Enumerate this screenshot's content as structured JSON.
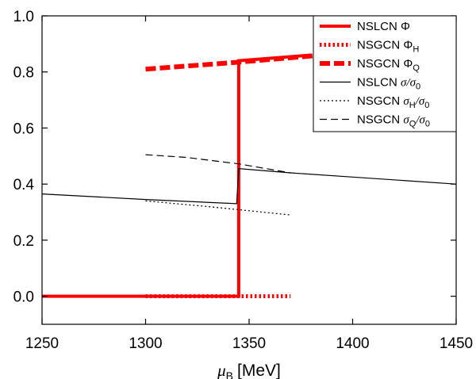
{
  "chart_data": {
    "type": "line",
    "xlabel_symbol": "μ",
    "xlabel_sub": "B",
    "xlabel_unit": "[MeV]",
    "xlim": [
      1250,
      1450
    ],
    "ylim": [
      -0.1,
      1.0
    ],
    "xticks": [
      1250,
      1300,
      1350,
      1400,
      1450
    ],
    "yticks": [
      0.0,
      0.2,
      0.4,
      0.6,
      0.8,
      1.0
    ],
    "ytick_labels": [
      "0.0",
      "0.2",
      "0.4",
      "0.6",
      "0.8",
      "1.0"
    ],
    "grid": false,
    "legend_position": "top-right",
    "series": [
      {
        "name": "NSLCN Φ",
        "color": "#ff0000",
        "style": "solid-thick",
        "points": [
          [
            1250,
            0.0
          ],
          [
            1345,
            0.0
          ],
          [
            1345,
            0.84
          ],
          [
            1380,
            0.86
          ]
        ]
      },
      {
        "name": "NSGCN ΦH",
        "color": "#ff0000",
        "style": "dotted-thick",
        "points": [
          [
            1300,
            0.0
          ],
          [
            1370,
            0.0
          ]
        ]
      },
      {
        "name": "NSGCN ΦQ",
        "color": "#ff0000",
        "style": "dashed-thick",
        "points": [
          [
            1300,
            0.81
          ],
          [
            1345,
            0.835
          ],
          [
            1385,
            0.86
          ]
        ]
      },
      {
        "name": "NSLCN σ/σ0",
        "color": "#000000",
        "style": "solid",
        "points": [
          [
            1250,
            0.365
          ],
          [
            1300,
            0.345
          ],
          [
            1344,
            0.33
          ],
          [
            1345,
            0.455
          ],
          [
            1370,
            0.44
          ],
          [
            1400,
            0.425
          ],
          [
            1450,
            0.4
          ]
        ]
      },
      {
        "name": "NSGCN σH/σ0",
        "color": "#000000",
        "style": "dotted",
        "points": [
          [
            1300,
            0.34
          ],
          [
            1330,
            0.32
          ],
          [
            1370,
            0.29
          ]
        ]
      },
      {
        "name": "NSGCN σQ/σ0",
        "color": "#000000",
        "style": "dashed",
        "points": [
          [
            1300,
            0.505
          ],
          [
            1320,
            0.495
          ],
          [
            1345,
            0.472
          ],
          [
            1370,
            0.44
          ]
        ]
      }
    ],
    "legend": [
      {
        "name_main": "NSLCN ",
        "sym": "Φ",
        "sub": ""
      },
      {
        "name_main": "NSGCN ",
        "sym": "Φ",
        "sub": "H"
      },
      {
        "name_main": "NSGCN ",
        "sym": "Φ",
        "sub": "Q"
      },
      {
        "name_main": "NSLCN ",
        "sym": "σ",
        "sub": "",
        "suffix": "/σ",
        "suffix_sub": "0"
      },
      {
        "name_main": "NSGCN ",
        "sym": "σ",
        "sub": "H",
        "suffix": "/σ",
        "suffix_sub": "0"
      },
      {
        "name_main": "NSGCN ",
        "sym": "σ",
        "sub": "Q",
        "suffix": "/σ",
        "suffix_sub": "0"
      }
    ]
  }
}
